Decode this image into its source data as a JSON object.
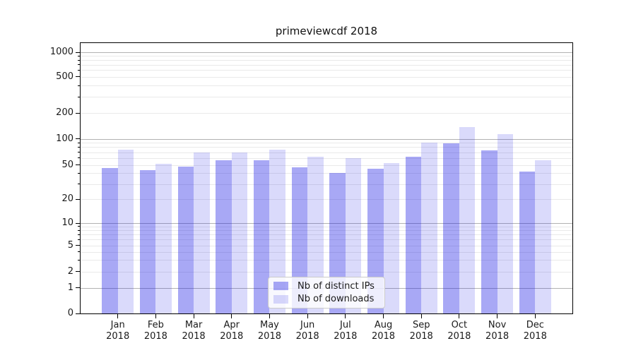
{
  "chart_data": {
    "type": "bar",
    "title": "primeviewcdf 2018",
    "categories": [
      "Jan 2018",
      "Feb 2018",
      "Mar 2018",
      "Apr 2018",
      "May 2018",
      "Jun 2018",
      "Jul 2018",
      "Aug 2018",
      "Sep 2018",
      "Oct 2018",
      "Nov 2018",
      "Dec 2018"
    ],
    "series": [
      {
        "name": "Nb of distinct IPs",
        "values": [
          46,
          43,
          48,
          56,
          56,
          47,
          40,
          45,
          62,
          88,
          73,
          42
        ]
      },
      {
        "name": "Nb of downloads",
        "values": [
          75,
          51,
          70,
          70,
          75,
          62,
          60,
          52,
          90,
          137,
          114,
          57
        ]
      }
    ],
    "yscale": "symlog",
    "yticks": [
      0,
      1,
      2,
      5,
      10,
      20,
      50,
      100,
      200,
      500,
      1000
    ],
    "ylim": [
      0,
      1300
    ],
    "xlabel": "",
    "ylabel": "",
    "grid": "major and minor horizontal gridlines, log spacing",
    "legend_position": "lower center"
  },
  "colors": {
    "bar_distinct_ips": "rgba(25,25,230,0.38)",
    "bar_downloads": "rgba(25,25,230,0.16)",
    "grid_major": "#b2b2b2",
    "grid_minor": "#e9e9e9",
    "axis": "#000000",
    "text": "#1a1a1a",
    "legend_border": "#cbcbcb"
  }
}
